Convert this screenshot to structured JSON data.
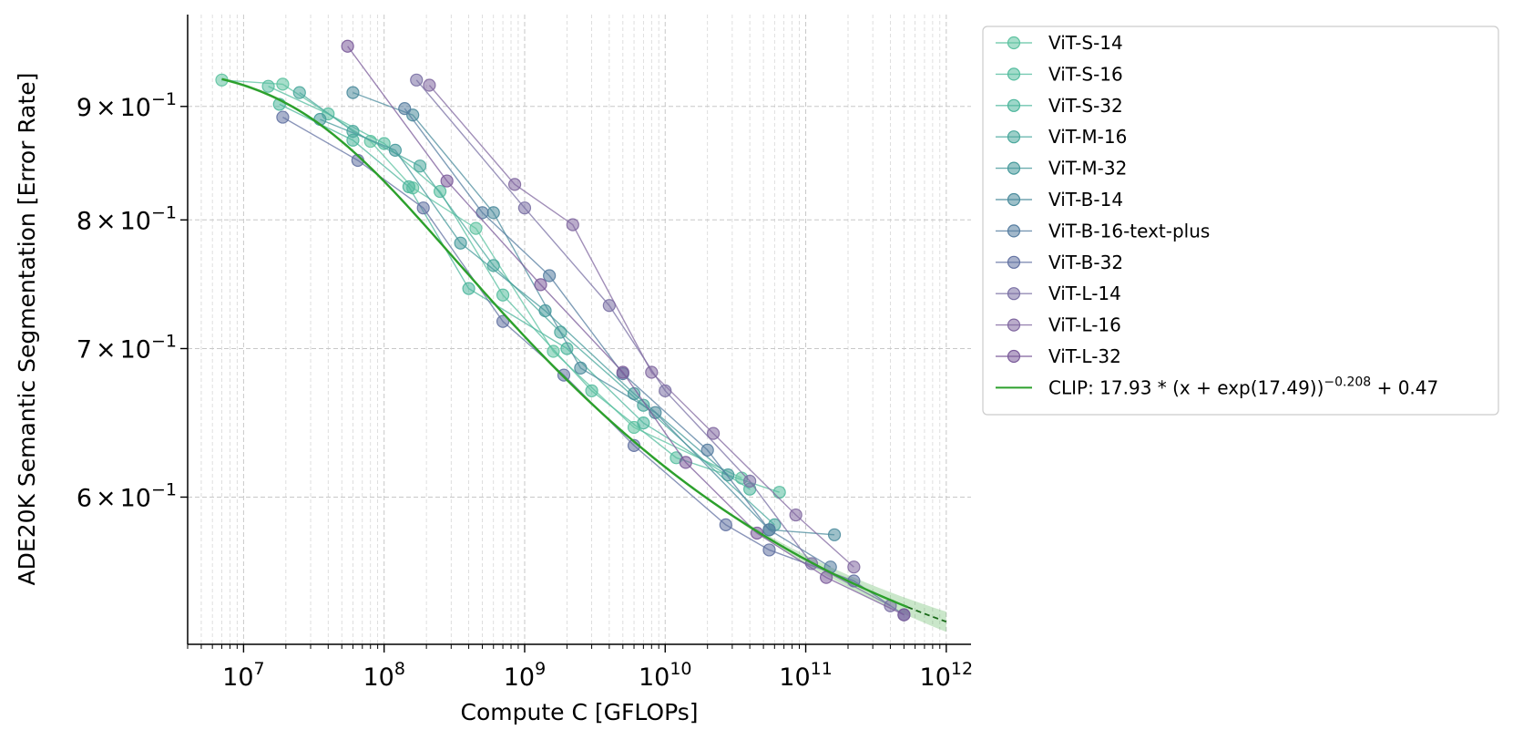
{
  "chart_data": {
    "type": "line",
    "xlabel": "Compute C [GFLOPs]",
    "ylabel": "ADE20K Semantic Segmentation [Error Rate]",
    "x_scale": "log",
    "y_scale": "log",
    "xlim": [
      4000000,
      1500000000000
    ],
    "ylim": [
      0.515,
      0.99
    ],
    "x_ticks": [
      {
        "value": 10000000,
        "base": "10",
        "exp": "7"
      },
      {
        "value": 100000000,
        "base": "10",
        "exp": "8"
      },
      {
        "value": 1000000000,
        "base": "10",
        "exp": "9"
      },
      {
        "value": 10000000000,
        "base": "10",
        "exp": "10"
      },
      {
        "value": 100000000000,
        "base": "10",
        "exp": "11"
      },
      {
        "value": 1000000000000,
        "base": "10",
        "exp": "12"
      }
    ],
    "y_ticks": [
      {
        "value": 0.6,
        "mant": "6",
        "times": "×",
        "base": "10",
        "exp": "−1"
      },
      {
        "value": 0.7,
        "mant": "7",
        "times": "×",
        "base": "10",
        "exp": "−1"
      },
      {
        "value": 0.8,
        "mant": "8",
        "times": "×",
        "base": "10",
        "exp": "−1"
      },
      {
        "value": 0.9,
        "mant": "9",
        "times": "×",
        "base": "10",
        "exp": "−1"
      }
    ],
    "grid": true,
    "legend_position": "outside-right",
    "series": [
      {
        "name": "ViT-S-14",
        "color": "#5ec3a1",
        "x": [
          7000000.0,
          19000000.0,
          80000000.0,
          160000000.0,
          450000000.0,
          1600000000.0,
          6000000000.0,
          35000000000.0
        ],
        "y": [
          0.925,
          0.921,
          0.868,
          0.827,
          0.793,
          0.698,
          0.645,
          0.612
        ]
      },
      {
        "name": "ViT-S-16",
        "color": "#55bd9f",
        "x": [
          15000000.0,
          40000000.0,
          100000000.0,
          250000000.0,
          700000000.0,
          3000000000.0,
          12000000000.0,
          65000000000.0
        ],
        "y": [
          0.919,
          0.893,
          0.866,
          0.824,
          0.74,
          0.67,
          0.625,
          0.603
        ]
      },
      {
        "name": "ViT-S-32",
        "color": "#4db69c",
        "x": [
          18000000.0,
          60000000.0,
          150000000.0,
          400000000.0,
          2000000000.0,
          7000000000.0,
          40000000000.0
        ],
        "y": [
          0.902,
          0.869,
          0.828,
          0.745,
          0.7,
          0.648,
          0.605
        ]
      },
      {
        "name": "ViT-M-16",
        "color": "#4aa89c",
        "x": [
          25000000.0,
          60000000.0,
          180000000.0,
          600000000.0,
          1800000000.0,
          7000000000.0,
          60000000000.0
        ],
        "y": [
          0.913,
          0.877,
          0.846,
          0.763,
          0.712,
          0.66,
          0.583
        ]
      },
      {
        "name": "ViT-M-32",
        "color": "#46999b",
        "x": [
          35000000.0,
          120000000.0,
          350000000.0,
          1400000000.0,
          6000000000.0,
          28000000000.0
        ],
        "y": [
          0.888,
          0.86,
          0.781,
          0.728,
          0.668,
          0.614
        ]
      },
      {
        "name": "ViT-B-14",
        "color": "#4c8c9d",
        "x": [
          60000000.0,
          160000000.0,
          600000000.0,
          2500000000.0,
          8500000000.0,
          55000000000.0,
          160000000000.0
        ],
        "y": [
          0.913,
          0.892,
          0.806,
          0.686,
          0.655,
          0.58,
          0.577
        ]
      },
      {
        "name": "ViT-B-16-text-plus",
        "color": "#567da0",
        "x": [
          140000000.0,
          500000000.0,
          1500000000.0,
          5000000000.0,
          20000000000.0,
          55000000000.0,
          150000000000.0
        ],
        "y": [
          0.898,
          0.806,
          0.755,
          0.682,
          0.63,
          0.58,
          0.558
        ]
      },
      {
        "name": "ViT-B-32",
        "color": "#6372a2",
        "x": [
          19000000.0,
          65000000.0,
          190000000.0,
          700000000.0,
          1900000000.0,
          6000000000.0,
          27000000000.0,
          55000000000.0,
          220000000000.0,
          500000000000.0
        ],
        "y": [
          0.89,
          0.851,
          0.81,
          0.72,
          0.681,
          0.633,
          0.583,
          0.568,
          0.55,
          0.531
        ]
      },
      {
        "name": "ViT-L-14",
        "color": "#7a70a4",
        "x": [
          170000000.0,
          1000000000.0,
          4000000000.0,
          10000000000.0,
          40000000000.0,
          110000000000.0,
          400000000000.0
        ],
        "y": [
          0.925,
          0.81,
          0.732,
          0.67,
          0.61,
          0.56,
          0.536
        ]
      },
      {
        "name": "ViT-L-16",
        "color": "#8168a0",
        "x": [
          210000000.0,
          850000000.0,
          2200000000.0,
          8000000000.0,
          22000000000.0,
          85000000000.0,
          220000000000.0
        ],
        "y": [
          0.92,
          0.83,
          0.796,
          0.683,
          0.641,
          0.589,
          0.558
        ]
      },
      {
        "name": "ViT-L-32",
        "color": "#7b5b9a",
        "x": [
          55000000.0,
          280000000.0,
          1300000000.0,
          5000000000.0,
          14000000000.0,
          45000000000.0,
          140000000000.0,
          500000000000.0
        ],
        "y": [
          0.958,
          0.833,
          0.748,
          0.683,
          0.622,
          0.578,
          0.552,
          0.531
        ]
      }
    ],
    "fit": {
      "name": "CLIP: 17.93 * (x + exp(17.49))^{-0.208} + 0.47",
      "label_prefix": "CLIP: ",
      "label_formula": "17.93 * (x + exp(17.49))",
      "label_exp": "−0.208",
      "label_suffix": " + 0.47",
      "color": "#2ca02c",
      "A": 17.93,
      "shift_ln": 17.49,
      "alpha": 0.208,
      "offset": 0.47,
      "x_range": [
        7000000,
        1000000000000
      ],
      "x_data_max": 530000000000
    }
  }
}
